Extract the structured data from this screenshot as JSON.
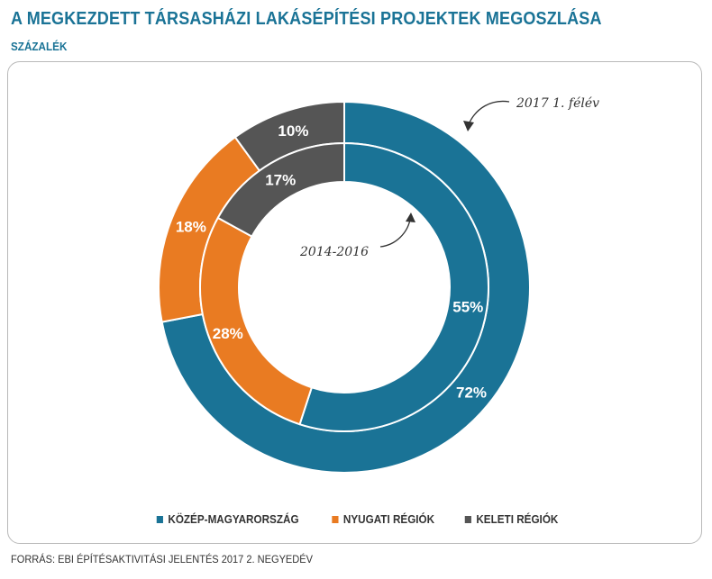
{
  "title": "A MEGKEZDETT TÁRSASHÁZI LAKÁSÉPÍTÉSI PROJEKTEK MEGOSZLÁSA",
  "subtitle": "SZÁZALÉK",
  "source": "FORRÁS: EBI ÉPÍTÉSAKTIVITÁSI JELENTÉS 2017 2. NEGYEDÉV",
  "chart_data": {
    "type": "pie",
    "subtype": "nested-donut",
    "categories": [
      "KÖZÉP-MAGYARORSZÁG",
      "NYUGATI RÉGIÓK",
      "KELETI RÉGIÓK"
    ],
    "colors": [
      "#1a7396",
      "#e97b22",
      "#555555"
    ],
    "series": [
      {
        "name": "2017 1. félév",
        "ring": "outer",
        "values": [
          72,
          18,
          10
        ],
        "labels": [
          "72%",
          "18%",
          "10%"
        ]
      },
      {
        "name": "2014-2016",
        "ring": "inner",
        "values": [
          55,
          28,
          17
        ],
        "labels": [
          "55%",
          "28%",
          "17%"
        ]
      }
    ],
    "legend_position": "bottom-center"
  }
}
